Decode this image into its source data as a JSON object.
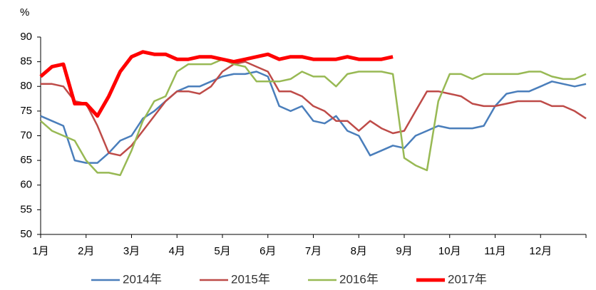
{
  "chart_data": {
    "type": "line",
    "ylabel": "%",
    "x": [
      1,
      1.25,
      1.5,
      1.75,
      2,
      2.25,
      2.5,
      2.75,
      3,
      3.25,
      3.5,
      3.75,
      4,
      4.25,
      4.5,
      4.75,
      5,
      5.25,
      5.5,
      5.75,
      6,
      6.25,
      6.5,
      6.75,
      7,
      7.25,
      7.5,
      7.75,
      8,
      8.25,
      8.5,
      8.75,
      9,
      9.25,
      9.5,
      9.75,
      10,
      10.25,
      10.5,
      10.75,
      11,
      11.25,
      11.5,
      11.75,
      12,
      12.25,
      12.5,
      12.75,
      13
    ],
    "xlim": [
      1,
      13
    ],
    "xticks": [
      {
        "value": 1,
        "label": "1月"
      },
      {
        "value": 2,
        "label": "2月"
      },
      {
        "value": 3,
        "label": "3月"
      },
      {
        "value": 4,
        "label": "4月"
      },
      {
        "value": 5,
        "label": "5月"
      },
      {
        "value": 6,
        "label": "6月"
      },
      {
        "value": 7,
        "label": "7月"
      },
      {
        "value": 8,
        "label": "8月"
      },
      {
        "value": 9,
        "label": "9月"
      },
      {
        "value": 10,
        "label": "10月"
      },
      {
        "value": 11,
        "label": "11月"
      },
      {
        "value": 12,
        "label": "12月"
      }
    ],
    "ylim": [
      50,
      90
    ],
    "yticks": [
      50,
      55,
      60,
      65,
      70,
      75,
      80,
      85,
      90
    ],
    "legend": "bottom",
    "series": [
      {
        "name": "2014年",
        "color": "#4a7ebb",
        "width": 2.5,
        "values": [
          74,
          73,
          72,
          65,
          64.5,
          64.5,
          66.5,
          69,
          70,
          73.5,
          75,
          77,
          79,
          80,
          80,
          81,
          82,
          82.5,
          82.5,
          83,
          82,
          76,
          75,
          76,
          73,
          72.5,
          74,
          71,
          70,
          66,
          67,
          68,
          67.5,
          70,
          71,
          72,
          71.5,
          71.5,
          71.5,
          72,
          76,
          78.5,
          79,
          79,
          80,
          81,
          80.5,
          80,
          80.5
        ]
      },
      {
        "name": "2015年",
        "color": "#be4b48",
        "width": 2.5,
        "values": [
          80.5,
          80.5,
          80,
          77,
          76.5,
          72,
          66.5,
          66,
          68,
          71,
          74,
          77,
          79,
          79,
          78.5,
          80,
          83,
          84.5,
          85,
          84,
          83,
          79,
          79,
          78,
          76,
          75,
          73,
          73,
          71,
          73,
          71.5,
          70.5,
          71,
          75,
          79,
          79,
          78.5,
          78,
          76.5,
          76,
          76,
          76.5,
          77,
          77,
          77,
          76,
          76,
          75,
          73.5
        ]
      },
      {
        "name": "2016年",
        "color": "#98b954",
        "width": 2.5,
        "values": [
          73,
          71,
          70,
          69,
          65,
          62.5,
          62.5,
          62,
          67,
          73,
          77,
          78,
          83,
          84.5,
          84.5,
          84.5,
          85.5,
          84.5,
          84,
          81,
          81,
          81,
          81.5,
          83,
          82,
          82,
          80,
          82.5,
          83,
          83,
          83,
          82.5,
          65.5,
          64,
          63,
          77,
          82.5,
          82.5,
          81.5,
          82.5,
          82.5,
          82.5,
          82.5,
          83,
          83,
          82,
          81.5,
          81.5,
          82.5
        ]
      },
      {
        "name": "2017年",
        "color": "#ff0000",
        "width": 5,
        "values": [
          82,
          84,
          84.5,
          76.5,
          76.5,
          74,
          78,
          83,
          86,
          87,
          86.5,
          86.5,
          85.5,
          85.5,
          86,
          86,
          85.5,
          85,
          85.5,
          86,
          86.5,
          85.5,
          86,
          86,
          85.5,
          85.5,
          85.5,
          86,
          85.5,
          85.5,
          85.5,
          86,
          null,
          null,
          null,
          null,
          null,
          null,
          null,
          null,
          null,
          null,
          null,
          null,
          null,
          null,
          null,
          null,
          null
        ]
      }
    ]
  }
}
